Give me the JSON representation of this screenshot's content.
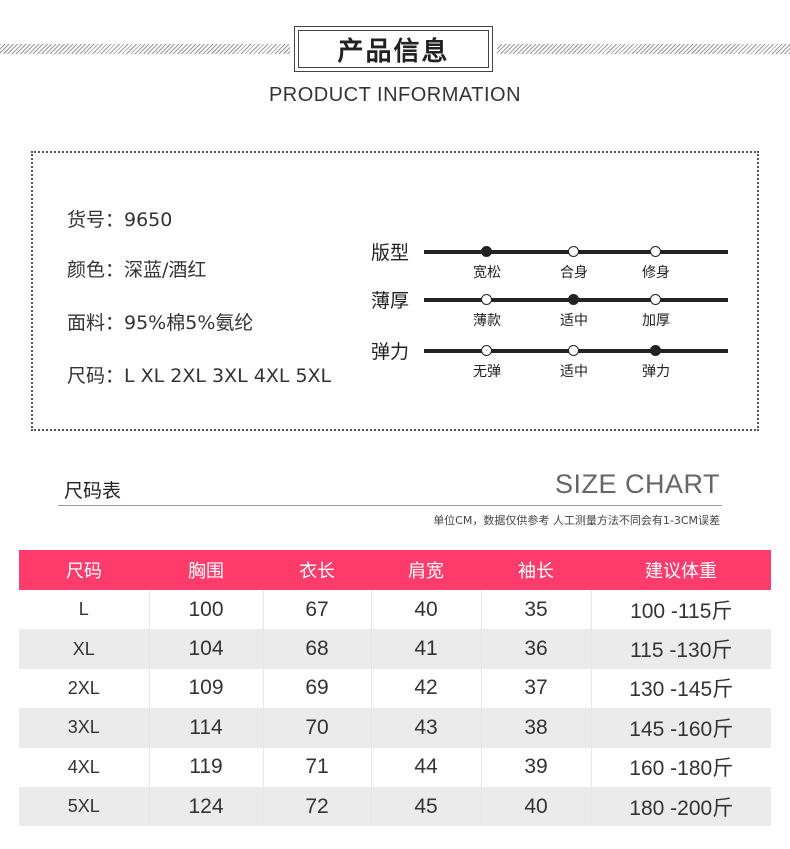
{
  "header": {
    "title": "产品信息",
    "subtitle": "PRODUCT INFORMATION"
  },
  "info": {
    "item_no": "货号：9650",
    "color": "颜色：深蓝/酒红",
    "fabric": "面料：95%棉5%氨纶",
    "sizes": "尺码：L XL 2XL 3XL 4XL 5XL"
  },
  "scales": [
    {
      "label": "版型",
      "options": [
        "宽松",
        "合身",
        "修身"
      ],
      "selected_index": 0
    },
    {
      "label": "薄厚",
      "options": [
        "薄款",
        "适中",
        "加厚"
      ],
      "selected_index": 1
    },
    {
      "label": "弹力",
      "options": [
        "无弹",
        "适中",
        "弹力"
      ],
      "selected_index": 2
    }
  ],
  "size_chart": {
    "title_cn": "尺码表",
    "title_en": "SIZE CHART",
    "note": "单位CM，数据仅供参考 人工测量方法不同会有1-3CM误差",
    "header_color": "#ff3c6b",
    "columns": [
      "尺码",
      "胸围",
      "衣长",
      "肩宽",
      "袖长",
      "建议体重"
    ],
    "rows": [
      [
        "L",
        "100",
        "67",
        "40",
        "35",
        "100 -115斤"
      ],
      [
        "XL",
        "104",
        "68",
        "41",
        "36",
        "115 -130斤"
      ],
      [
        "2XL",
        "109",
        "69",
        "42",
        "37",
        "130 -145斤"
      ],
      [
        "3XL",
        "114",
        "70",
        "43",
        "38",
        "145 -160斤"
      ],
      [
        "4XL",
        "119",
        "71",
        "44",
        "39",
        "160 -180斤"
      ],
      [
        "5XL",
        "124",
        "72",
        "45",
        "40",
        "180 -200斤"
      ]
    ]
  }
}
